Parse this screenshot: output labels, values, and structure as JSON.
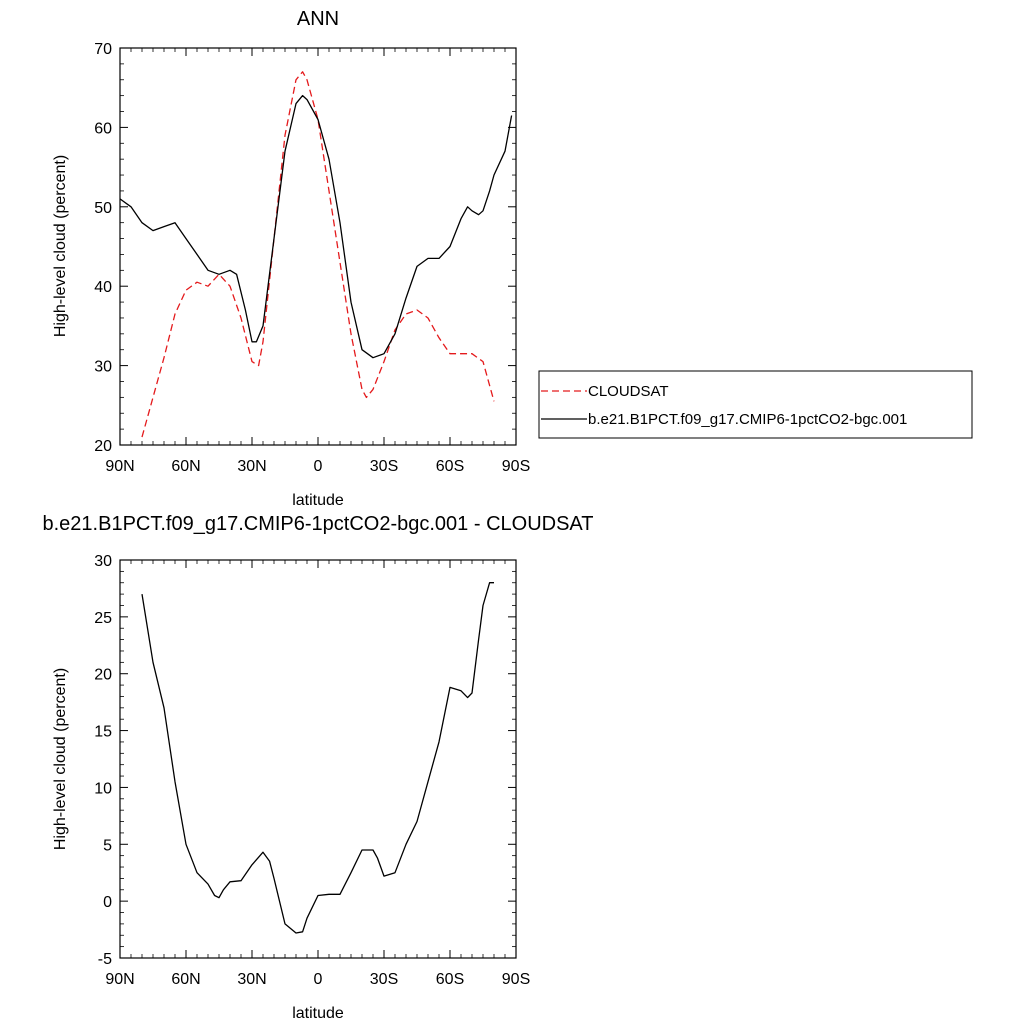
{
  "chart_data": [
    {
      "type": "line",
      "title": "ANN",
      "xlabel": "latitude",
      "ylabel": "High-level cloud (percent)",
      "xlim": [
        90,
        -90
      ],
      "ylim": [
        20,
        70
      ],
      "x_ticks": [
        {
          "value": 90,
          "label": "90N"
        },
        {
          "value": 60,
          "label": "60N"
        },
        {
          "value": 30,
          "label": "30N"
        },
        {
          "value": 0,
          "label": "0"
        },
        {
          "value": -30,
          "label": "30S"
        },
        {
          "value": -60,
          "label": "60S"
        },
        {
          "value": -90,
          "label": "90S"
        }
      ],
      "y_ticks": [
        20,
        30,
        40,
        50,
        60,
        70
      ],
      "legend_position": "right",
      "series": [
        {
          "name": "CLOUDSAT",
          "color": "#e41a1c",
          "dash": true,
          "x": [
            80,
            75,
            70,
            65,
            60,
            55,
            50,
            45,
            40,
            35,
            30,
            27,
            25,
            20,
            15,
            10,
            7,
            5,
            0,
            -5,
            -10,
            -15,
            -20,
            -22,
            -25,
            -30,
            -35,
            -40,
            -45,
            -50,
            -55,
            -60,
            -65,
            -70,
            -75,
            -80
          ],
          "y": [
            21,
            26,
            31,
            36.5,
            39.5,
            40.5,
            40,
            41.5,
            40,
            36,
            30.5,
            30,
            33,
            46,
            59,
            66,
            67,
            66,
            61,
            52,
            43,
            34,
            27,
            26,
            27,
            30.5,
            34.5,
            36.5,
            37,
            36,
            33.5,
            31.5,
            31.5,
            31.5,
            30.5,
            25.5
          ]
        },
        {
          "name": "b.e21.B1PCT.f09_g17.CMIP6-1pctCO2-bgc.001",
          "color": "#000000",
          "dash": false,
          "x": [
            90,
            85,
            80,
            75,
            70,
            65,
            60,
            55,
            50,
            45,
            40,
            37,
            33,
            30,
            28,
            25,
            20,
            15,
            10,
            7,
            5,
            0,
            -5,
            -10,
            -15,
            -20,
            -25,
            -30,
            -35,
            -40,
            -45,
            -50,
            -55,
            -60,
            -65,
            -68,
            -70,
            -73,
            -75,
            -78,
            -80,
            -85,
            -88
          ],
          "y": [
            51,
            50,
            48,
            47,
            47.5,
            48,
            46,
            44,
            42,
            41.5,
            42,
            41.5,
            37,
            33,
            33,
            35,
            46,
            57,
            63,
            64,
            63.5,
            61,
            56,
            48,
            38,
            32,
            31,
            31.5,
            34,
            38.5,
            42.5,
            43.5,
            43.5,
            45,
            48.5,
            50,
            49.5,
            49,
            49.5,
            52,
            54,
            57,
            61.5
          ]
        }
      ]
    },
    {
      "type": "line",
      "title": "b.e21.B1PCT.f09_g17.CMIP6-1pctCO2-bgc.001 - CLOUDSAT",
      "xlabel": "latitude",
      "ylabel": "High-level cloud (percent)",
      "xlim": [
        90,
        -90
      ],
      "ylim": [
        -5,
        30
      ],
      "x_ticks": [
        {
          "value": 90,
          "label": "90N"
        },
        {
          "value": 60,
          "label": "60N"
        },
        {
          "value": 30,
          "label": "30N"
        },
        {
          "value": 0,
          "label": "0"
        },
        {
          "value": -30,
          "label": "30S"
        },
        {
          "value": -60,
          "label": "60S"
        },
        {
          "value": -90,
          "label": "90S"
        }
      ],
      "y_ticks": [
        -5,
        0,
        5,
        10,
        15,
        20,
        25,
        30
      ],
      "series": [
        {
          "color": "#000000",
          "dash": false,
          "x": [
            80,
            75,
            70,
            65,
            60,
            57,
            55,
            50,
            47,
            45,
            43,
            40,
            35,
            30,
            25,
            22,
            20,
            15,
            10,
            7,
            5,
            0,
            -5,
            -10,
            -15,
            -20,
            -25,
            -27,
            -30,
            -35,
            -40,
            -45,
            -50,
            -55,
            -60,
            -65,
            -68,
            -70,
            -73,
            -75,
            -78,
            -80
          ],
          "y": [
            27,
            21,
            17,
            10.5,
            5,
            3.5,
            2.5,
            1.5,
            0.5,
            0.3,
            1,
            1.7,
            1.8,
            3.2,
            4.3,
            3.5,
            2,
            -2,
            -2.8,
            -2.7,
            -1.5,
            0.5,
            0.6,
            0.6,
            2.5,
            4.5,
            4.5,
            3.8,
            2.2,
            2.5,
            5,
            7,
            10.5,
            14,
            18.8,
            18.5,
            17.9,
            18.3,
            23,
            26,
            28,
            28
          ]
        }
      ]
    }
  ]
}
